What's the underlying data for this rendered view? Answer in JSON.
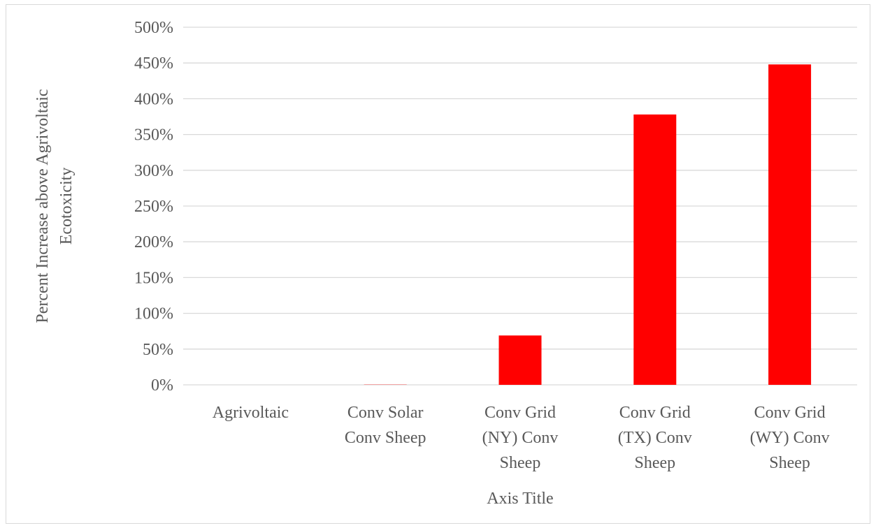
{
  "chart_data": {
    "type": "bar",
    "categories": [
      [
        "Agrivoltaic"
      ],
      [
        "Conv Solar",
        "Conv Sheep"
      ],
      [
        "Conv Grid",
        "(NY) Conv",
        "Sheep"
      ],
      [
        "Conv Grid",
        "(TX) Conv",
        "Sheep"
      ],
      [
        "Conv Grid",
        "(WY) Conv",
        "Sheep"
      ]
    ],
    "series": [
      {
        "values": [
          0,
          0.3,
          69,
          378,
          448
        ],
        "color": "#ff0000"
      }
    ],
    "xlabel": "Axis Title",
    "ylabel": [
      "Percent Increase above Agrivoltaic",
      "Ecotoxicity"
    ],
    "ylim": [
      0,
      500
    ],
    "yticks": [
      "0%",
      "50%",
      "100%",
      "150%",
      "200%",
      "250%",
      "300%",
      "350%",
      "400%",
      "450%",
      "500%"
    ],
    "grid": true,
    "legend": "none"
  }
}
